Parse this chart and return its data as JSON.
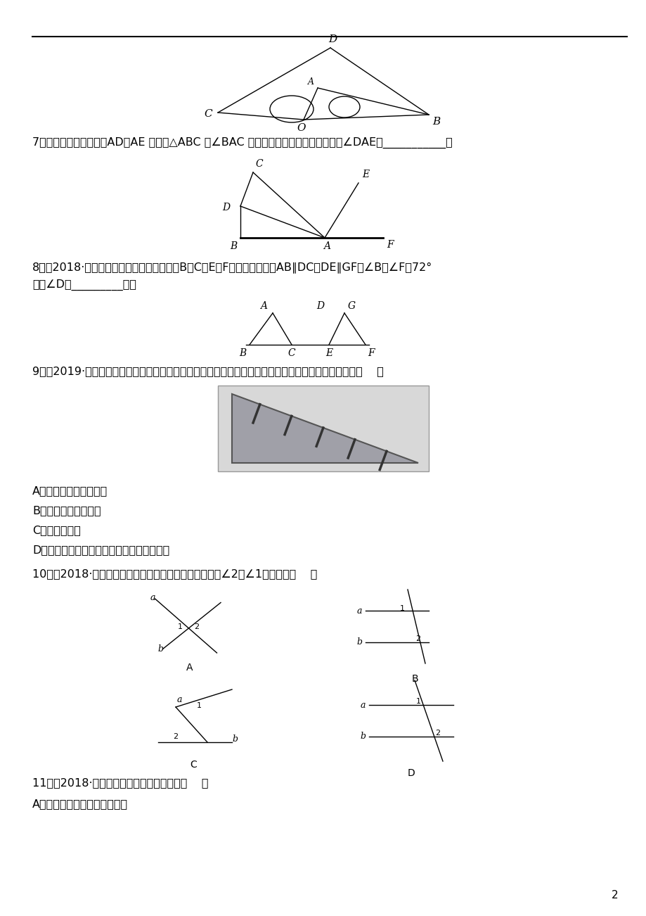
{
  "bg_color": "#ffffff",
  "text_color": "#000000",
  "page_number": "2",
  "font_size_main": 11.5,
  "line_lw": 1.0,
  "q7_text": "7．（教材改编）如图，AD、AE 分别是△ABC 中∠BAC 的内角平分线和外角平分线，则∠DAE＝___________．",
  "q8_text1": "8．（2018·江西上饶广丰区模拟）如图，点B，C，E，F在一条直线上，AB∥DC，DE∥GF，∠B＝∠F＝72°",
  "q8_text2": "，则∠D＝_________度．",
  "q9_text": "9．（2019·原创）事实上，把一条木板用钉子固定在墙上，最少需要两枚钉子．这里用到的数学原理是（    ）",
  "q9_A": "A．两点之间，线段最短",
  "q9_B": "B．两点确定一条直线",
  "q9_C": "C．垂线段最短",
  "q9_D": "D．过一点有且只有一条直线和已知直线平行",
  "q10_text": "10．（2018·曲靖罗平一模）下列四个图形中，不能推出∠2与∠1相等的是（    ）",
  "q11_text": "11．（2018·永州）下列命题是真命题的是（    ）",
  "q11_A": "A．对角线相等的四边形是矩形"
}
